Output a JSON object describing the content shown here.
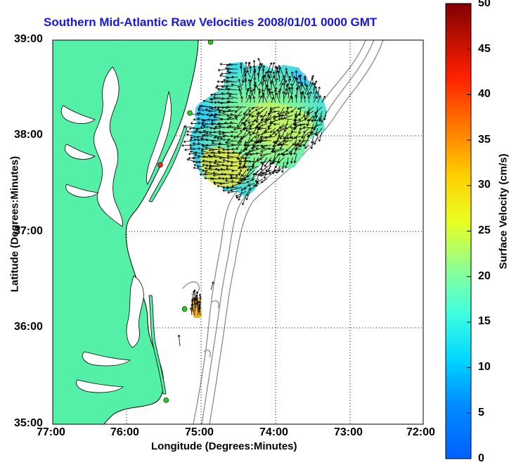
{
  "title": "Southern Mid-Atlantic Raw Velocities 2008/01/01 0000 GMT",
  "xlabel": "Longitude (Degrees:Minutes)",
  "ylabel": "Latitude (Degrees:Minutes)",
  "colorbar": {
    "label": "Surface Velocity (cm/s)",
    "ticks": [
      "50",
      "45",
      "40",
      "35",
      "30",
      "25",
      "20",
      "15",
      "10",
      "5",
      "0"
    ]
  },
  "x_ticks": [
    "77:00",
    "76:00",
    "75:00",
    "74:00",
    "73:00",
    "72:00"
  ],
  "y_ticks": [
    "39:00",
    "38:00",
    "37:00",
    "36:00",
    "35:00"
  ],
  "colors": {
    "land": "#55f0a8",
    "coastline": "#000000",
    "bathymetry": "#8c8c8c",
    "grid": "#000000",
    "title": "#1515e6",
    "station_marker": "#22cc22",
    "station_marker_alt": "#e03020"
  },
  "chart_data": {
    "type": "map",
    "xlim": [
      -77,
      -72
    ],
    "ylim": [
      35,
      39
    ],
    "velocity_range": [
      0,
      50
    ],
    "grid": true,
    "stations": [
      {
        "lon": -74.87,
        "lat": 38.98,
        "color": "green"
      },
      {
        "lon": -75.15,
        "lat": 38.24,
        "color": "green"
      },
      {
        "lon": -75.55,
        "lat": 37.7,
        "color": "red"
      },
      {
        "lon": -75.22,
        "lat": 36.2,
        "color": "green"
      },
      {
        "lon": -75.47,
        "lat": 35.25,
        "color": "green"
      }
    ]
  }
}
